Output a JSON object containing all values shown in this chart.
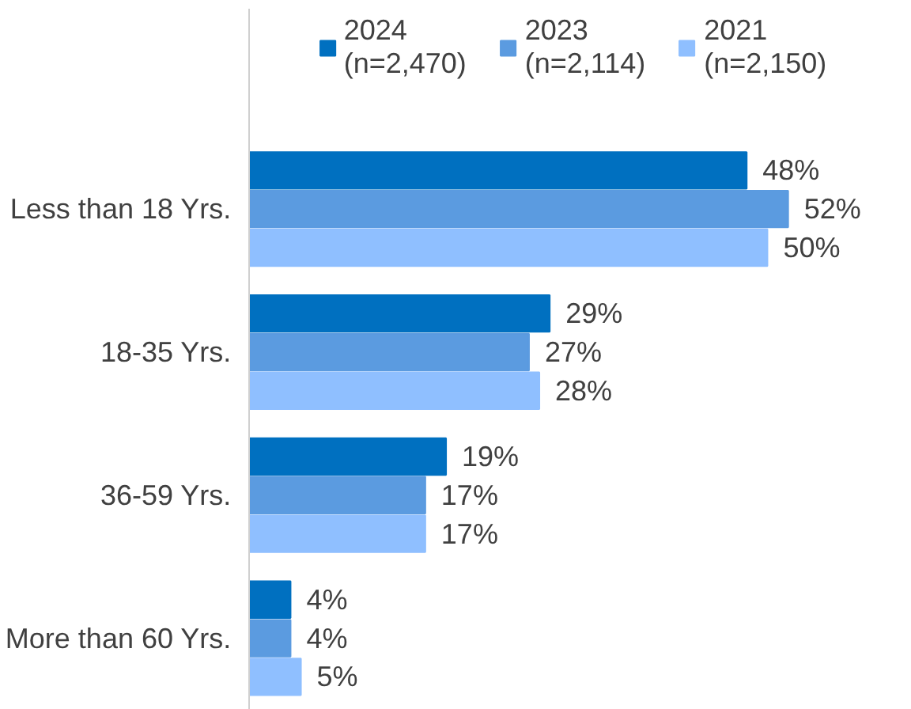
{
  "chart_data": {
    "type": "bar",
    "orientation": "horizontal",
    "categories": [
      "Less than 18 Yrs.",
      "18-35 Yrs.",
      "36-59 Yrs.",
      "More than 60 Yrs."
    ],
    "series": [
      {
        "name": "2024\n(n=2,470)",
        "color": "#0070c0",
        "values": [
          48,
          29,
          19,
          4
        ],
        "value_labels": [
          "48%",
          "29%",
          "19%",
          "4%"
        ]
      },
      {
        "name": "2023\n(n=2,114)",
        "color": "#5b9be0",
        "values": [
          52,
          27,
          17,
          4
        ],
        "value_labels": [
          "52%",
          "27%",
          "17%",
          "4%"
        ]
      },
      {
        "name": "2021\n(n=2,150)",
        "color": "#8fbfff",
        "values": [
          50,
          28,
          17,
          5
        ],
        "value_labels": [
          "50%",
          "28%",
          "17%",
          "5%"
        ]
      }
    ],
    "relative": false,
    "legend": "top",
    "grid": false
  }
}
